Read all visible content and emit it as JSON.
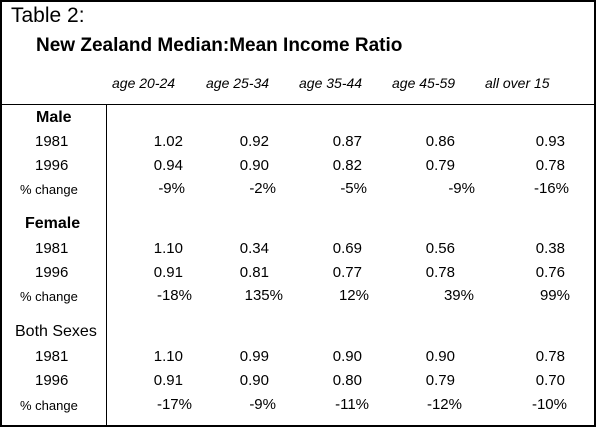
{
  "table_label": "Table 2:",
  "title": "New Zealand Median:Mean Income Ratio",
  "columns": [
    "age 20-24",
    "age 25-34",
    "age 35-44",
    "age 45-59",
    "all over 15"
  ],
  "groups": [
    {
      "name": "Male",
      "rows": [
        {
          "label": "1981",
          "values": [
            "1.02",
            "0.92",
            "0.87",
            "0.86",
            "0.93"
          ]
        },
        {
          "label": "1996",
          "values": [
            "0.94",
            "0.90",
            "0.82",
            "0.79",
            "0.78"
          ]
        },
        {
          "label": "% change",
          "values": [
            "-9%",
            "-2%",
            "-5%",
            "-9%",
            "-16%"
          ]
        }
      ]
    },
    {
      "name": "Female",
      "rows": [
        {
          "label": "1981",
          "values": [
            "1.10",
            "0.34",
            "0.69",
            "0.56",
            "0.38"
          ]
        },
        {
          "label": "1996",
          "values": [
            "0.91",
            "0.81",
            "0.77",
            "0.78",
            "0.76"
          ]
        },
        {
          "label": "% change",
          "values": [
            "-18%",
            "135%",
            "12%",
            "39%",
            "99%"
          ]
        }
      ]
    },
    {
      "name": "Both Sexes",
      "rows": [
        {
          "label": "1981",
          "values": [
            "1.10",
            "0.99",
            "0.90",
            "0.90",
            "0.78"
          ]
        },
        {
          "label": "1996",
          "values": [
            "0.91",
            "0.90",
            "0.80",
            "0.79",
            "0.70"
          ]
        },
        {
          "label": "% change",
          "values": [
            "-17%",
            "-9%",
            "-11%",
            "-12%",
            "-10%"
          ]
        }
      ]
    }
  ]
}
